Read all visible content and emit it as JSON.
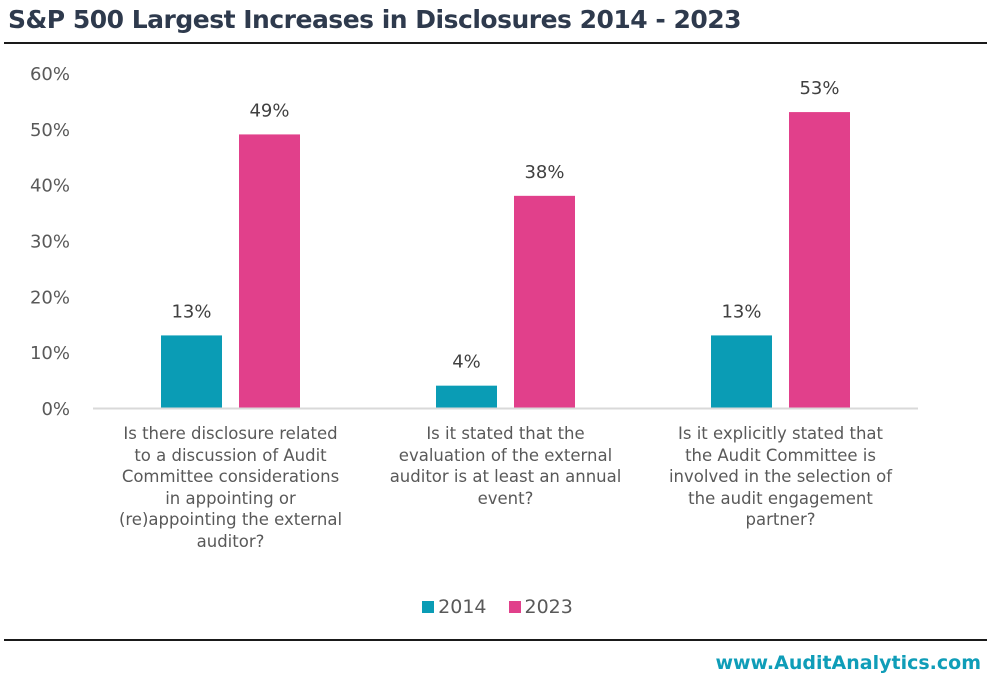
{
  "header": {
    "title": "S&P 500 Largest Increases in Disclosures 2014 - 2023"
  },
  "footer": {
    "url": "www.AuditAnalytics.com"
  },
  "colors": {
    "2014": "#0a9cb5",
    "2023": "#e1408b",
    "axis": "#d9d9d9"
  },
  "chart_data": {
    "type": "bar",
    "title": "S&P 500 Largest Increases in Disclosures 2014 - 2023",
    "xlabel": "",
    "ylabel": "",
    "ylim": [
      0,
      60
    ],
    "yticks": [
      "0%",
      "10%",
      "20%",
      "30%",
      "40%",
      "50%",
      "60%"
    ],
    "ytick_values": [
      0,
      10,
      20,
      30,
      40,
      50,
      60
    ],
    "grid": false,
    "legend_position": "bottom",
    "categories": [
      "Is there disclosure related to a discussion of Audit Committee considerations in appointing or (re)appointing the external auditor?",
      "Is it stated that the evaluation of the external auditor is at least an annual event?",
      "Is it explicitly stated that the Audit Committee is involved in the selection of the audit engagement partner?"
    ],
    "category_lines": [
      [
        "Is there disclosure related",
        "to a discussion of Audit",
        "Committee considerations",
        "in appointing or",
        "(re)appointing the external",
        "auditor?"
      ],
      [
        "Is it stated that the",
        "evaluation of the external",
        "auditor is at least an annual",
        "event?"
      ],
      [
        "Is it explicitly stated that",
        "the Audit Committee is",
        "involved in the selection of",
        "the audit engagement",
        "partner?"
      ]
    ],
    "series": [
      {
        "name": "2014",
        "values": [
          13,
          4,
          13
        ],
        "labels": [
          "13%",
          "4%",
          "13%"
        ]
      },
      {
        "name": "2023",
        "values": [
          49,
          38,
          53
        ],
        "labels": [
          "49%",
          "38%",
          "53%"
        ]
      }
    ]
  }
}
